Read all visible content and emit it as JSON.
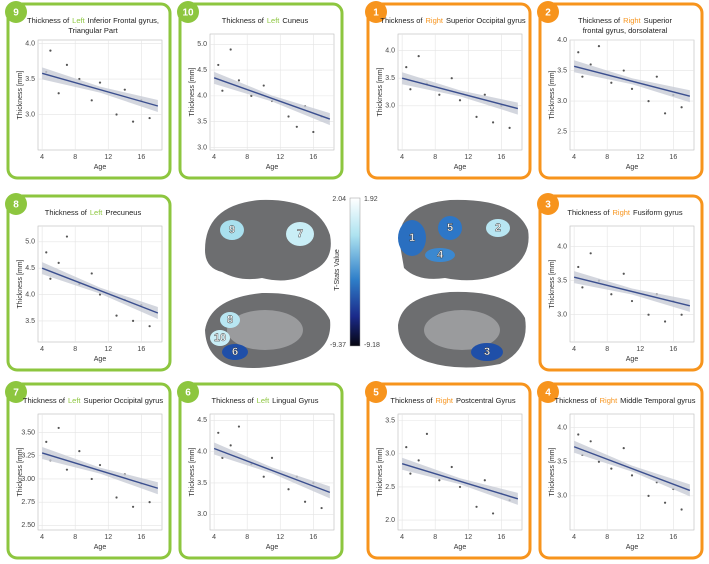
{
  "chart_data": [
    {
      "type": "scatter",
      "badge": 9,
      "color": "#8dc63f",
      "title": {
        "prefix": "Thickness of",
        "hemisphere": "Left",
        "rest": "Inferior Frontal gyrus,",
        "line2": "Triangular Part"
      },
      "x_label": "Age",
      "y_label": "Thickness [mm]",
      "xlim": [
        3.5,
        18.5
      ],
      "xticks": [
        4,
        8,
        12,
        16
      ],
      "ylim": [
        2.5,
        4.05
      ],
      "yticks": [
        {
          "value": 3,
          "label": "3.0"
        },
        3.5,
        {
          "value": 4,
          "label": "4.0"
        }
      ],
      "x": [
        4.5,
        5,
        6,
        7,
        8.5,
        10,
        11,
        13,
        14,
        15,
        16,
        17
      ],
      "y": [
        3.6,
        3.9,
        3.3,
        3.7,
        3.5,
        3.2,
        3.45,
        3.0,
        3.35,
        2.9,
        3.2,
        2.95
      ],
      "fit": {
        "x": [
          4,
          18
        ],
        "y": [
          3.58,
          3.12
        ]
      }
    },
    {
      "type": "scatter",
      "badge": 10,
      "color": "#8dc63f",
      "title": {
        "prefix": "Thickness of",
        "hemisphere": "Left",
        "rest": "Cuneus"
      },
      "x_label": "Age",
      "y_label": "Thickness [mm]",
      "xlim": [
        3.5,
        18.5
      ],
      "xticks": [
        4,
        8,
        12,
        16
      ],
      "ylim": [
        2.95,
        5.2
      ],
      "yticks": [
        {
          "value": 3,
          "label": "3.0"
        },
        3.5,
        {
          "value": 4,
          "label": "4.0"
        },
        4.5,
        {
          "value": 5,
          "label": "5.0"
        }
      ],
      "x": [
        4.5,
        5,
        6,
        7,
        8.5,
        10,
        11,
        13,
        14,
        15,
        16,
        17
      ],
      "y": [
        4.6,
        4.1,
        4.9,
        4.3,
        4.0,
        4.2,
        3.9,
        3.6,
        3.4,
        3.8,
        3.3,
        3.6
      ],
      "fit": {
        "x": [
          4,
          18
        ],
        "y": [
          4.35,
          3.55
        ]
      }
    },
    {
      "type": "scatter",
      "badge": 1,
      "color": "#f7941d",
      "title": {
        "prefix": "Thickness of",
        "hemisphere": "Right",
        "rest": "Superior Occipital gyrus"
      },
      "x_label": "Age",
      "y_label": "Thickness [mm]",
      "xlim": [
        3.5,
        18.5
      ],
      "xticks": [
        4,
        8,
        12,
        16
      ],
      "ylim": [
        2.2,
        4.3
      ],
      "yticks": [
        {
          "value": 3,
          "label": "3.0"
        },
        3.5,
        {
          "value": 4,
          "label": "4.0"
        }
      ],
      "x": [
        4.5,
        5,
        6,
        7,
        8.5,
        10,
        11,
        13,
        14,
        15,
        16,
        17
      ],
      "y": [
        3.7,
        3.3,
        3.9,
        3.4,
        3.2,
        3.5,
        3.1,
        2.8,
        3.2,
        2.7,
        3.0,
        2.6
      ],
      "fit": {
        "x": [
          4,
          18
        ],
        "y": [
          3.5,
          2.95
        ]
      }
    },
    {
      "type": "scatter",
      "badge": 2,
      "color": "#f7941d",
      "title": {
        "prefix": "Thickness of",
        "hemisphere": "Right",
        "rest": "Superior",
        "line2": "frontal gyrus, dorsolateral"
      },
      "x_label": "Age",
      "y_label": "Thickness [mm]",
      "xlim": [
        3.5,
        18.5
      ],
      "xticks": [
        4,
        8,
        12,
        16
      ],
      "ylim": [
        2.2,
        4.0
      ],
      "yticks": [
        2.5,
        {
          "value": 3,
          "label": "3.0"
        },
        3.5,
        {
          "value": 4,
          "label": "4.0"
        }
      ],
      "x": [
        4.5,
        5,
        6,
        7,
        8.5,
        10,
        11,
        13,
        14,
        15,
        16,
        17
      ],
      "y": [
        3.8,
        3.4,
        3.6,
        3.9,
        3.3,
        3.5,
        3.2,
        3.0,
        3.4,
        2.8,
        3.1,
        2.9
      ],
      "fit": {
        "x": [
          4,
          18
        ],
        "y": [
          3.57,
          3.08
        ]
      }
    },
    {
      "type": "scatter",
      "badge": 8,
      "color": "#8dc63f",
      "title": {
        "prefix": "Thickness of",
        "hemisphere": "Left",
        "rest": "Precuneus"
      },
      "x_label": "Age",
      "y_label": "Thickness [mm]",
      "xlim": [
        3.5,
        18.5
      ],
      "xticks": [
        4,
        8,
        12,
        16
      ],
      "ylim": [
        3.1,
        5.3
      ],
      "yticks": [
        {
          "value": 3.5,
          "label": "3.5"
        },
        {
          "value": 4,
          "label": "4.0"
        },
        4.5,
        {
          "value": 5,
          "label": "5.0"
        }
      ],
      "x": [
        4.5,
        5,
        6,
        7,
        8.5,
        10,
        11,
        13,
        14,
        15,
        16,
        17
      ],
      "y": [
        4.8,
        4.3,
        4.6,
        5.1,
        4.2,
        4.4,
        4.0,
        3.6,
        3.9,
        3.5,
        3.8,
        3.4
      ],
      "fit": {
        "x": [
          4,
          18
        ],
        "y": [
          4.5,
          3.65
        ]
      }
    },
    {
      "type": "scatter",
      "badge": 3,
      "color": "#f7941d",
      "title": {
        "prefix": "Thickness of",
        "hemisphere": "Right",
        "rest": "Fusiform gyrus"
      },
      "x_label": "Age",
      "y_label": "Thickness [mm]",
      "xlim": [
        3.5,
        18.5
      ],
      "xticks": [
        4,
        8,
        12,
        16
      ],
      "ylim": [
        2.6,
        4.3
      ],
      "yticks": [
        {
          "value": 3,
          "label": "3.0"
        },
        3.5,
        {
          "value": 4,
          "label": "4.0"
        }
      ],
      "x": [
        4.5,
        5,
        6,
        7,
        8.5,
        10,
        11,
        13,
        14,
        15,
        16,
        17
      ],
      "y": [
        3.7,
        3.4,
        3.9,
        3.5,
        3.3,
        3.6,
        3.2,
        3.0,
        3.3,
        2.9,
        3.2,
        3.0
      ],
      "fit": {
        "x": [
          4,
          18
        ],
        "y": [
          3.55,
          3.13
        ]
      }
    },
    {
      "type": "scatter",
      "badge": 7,
      "color": "#8dc63f",
      "title": {
        "prefix": "Thickness of",
        "hemisphere": "Left",
        "rest": "Superior Occipital gyrus"
      },
      "x_label": "Age",
      "y_label": "Thickness [mm]",
      "xlim": [
        3.5,
        18.5
      ],
      "xticks": [
        4,
        8,
        12,
        16
      ],
      "ylim": [
        2.45,
        3.7
      ],
      "yticks": [
        {
          "value": 2.5,
          "label": "2.50"
        },
        2.75,
        {
          "value": 3,
          "label": "3.00"
        },
        3.25,
        {
          "value": 3.5,
          "label": "3.50"
        }
      ],
      "x": [
        4.5,
        5,
        6,
        7,
        8.5,
        10,
        11,
        13,
        14,
        15,
        16,
        17
      ],
      "y": [
        3.4,
        3.2,
        3.55,
        3.1,
        3.3,
        3.0,
        3.15,
        2.8,
        3.05,
        2.7,
        2.95,
        2.75
      ],
      "fit": {
        "x": [
          4,
          18
        ],
        "y": [
          3.28,
          2.9
        ]
      }
    },
    {
      "type": "scatter",
      "badge": 6,
      "color": "#8dc63f",
      "title": {
        "prefix": "Thickness of",
        "hemisphere": "Left",
        "rest": "Lingual Gyrus"
      },
      "x_label": "Age",
      "y_label": "Thickness [mm]",
      "xlim": [
        3.5,
        18.5
      ],
      "xticks": [
        4,
        8,
        12,
        16
      ],
      "ylim": [
        2.75,
        4.6
      ],
      "yticks": [
        {
          "value": 3,
          "label": "3.0"
        },
        3.5,
        {
          "value": 4,
          "label": "4.0"
        },
        4.5
      ],
      "x": [
        4.5,
        5,
        6,
        7,
        8.5,
        10,
        11,
        13,
        14,
        15,
        16,
        17
      ],
      "y": [
        4.3,
        3.9,
        4.1,
        4.4,
        3.8,
        3.6,
        3.9,
        3.4,
        3.6,
        3.2,
        3.5,
        3.1
      ],
      "fit": {
        "x": [
          4,
          18
        ],
        "y": [
          4.05,
          3.35
        ]
      }
    },
    {
      "type": "scatter",
      "badge": 5,
      "color": "#f7941d",
      "title": {
        "prefix": "Thickness of",
        "hemisphere": "Right",
        "rest": "Postcentral Gyrus"
      },
      "x_label": "Age",
      "y_label": "Thickness [mm]",
      "xlim": [
        3.5,
        18.5
      ],
      "xticks": [
        4,
        8,
        12,
        16
      ],
      "ylim": [
        1.85,
        3.6
      ],
      "yticks": [
        {
          "value": 2,
          "label": "2.0"
        },
        2.5,
        {
          "value": 3,
          "label": "3.0"
        },
        3.5
      ],
      "x": [
        4.5,
        5,
        6,
        7,
        8.5,
        10,
        11,
        13,
        14,
        15,
        16,
        17
      ],
      "y": [
        3.1,
        2.7,
        2.9,
        3.3,
        2.6,
        2.8,
        2.5,
        2.2,
        2.6,
        2.1,
        2.4,
        2.3
      ],
      "fit": {
        "x": [
          4,
          18
        ],
        "y": [
          2.85,
          2.32
        ]
      }
    },
    {
      "type": "scatter",
      "badge": 4,
      "color": "#f7941d",
      "title": {
        "prefix": "Thickness of",
        "hemisphere": "Right",
        "rest": "Middle Temporal gyrus"
      },
      "x_label": "Age",
      "y_label": "Thickness [mm]",
      "xlim": [
        3.5,
        18.5
      ],
      "xticks": [
        4,
        8,
        12,
        16
      ],
      "ylim": [
        2.5,
        4.2
      ],
      "yticks": [
        {
          "value": 3,
          "label": "3.0"
        },
        3.5,
        {
          "value": 4,
          "label": "4.0"
        }
      ],
      "x": [
        4.5,
        5,
        6,
        7,
        8.5,
        10,
        11,
        13,
        14,
        15,
        16,
        17
      ],
      "y": [
        3.9,
        3.6,
        3.8,
        3.5,
        3.4,
        3.7,
        3.3,
        3.0,
        3.2,
        2.9,
        3.1,
        2.8
      ],
      "fit": {
        "x": [
          4,
          18
        ],
        "y": [
          3.72,
          3.08
        ]
      }
    }
  ],
  "brain": {
    "colorbar_label": "T-Stats Value",
    "left_top": 2.04,
    "right_top": 1.92,
    "left_bottom": -9.37,
    "right_bottom": -9.18,
    "regions": [
      9,
      7,
      1,
      5,
      2,
      4,
      8,
      10,
      6,
      3
    ]
  }
}
